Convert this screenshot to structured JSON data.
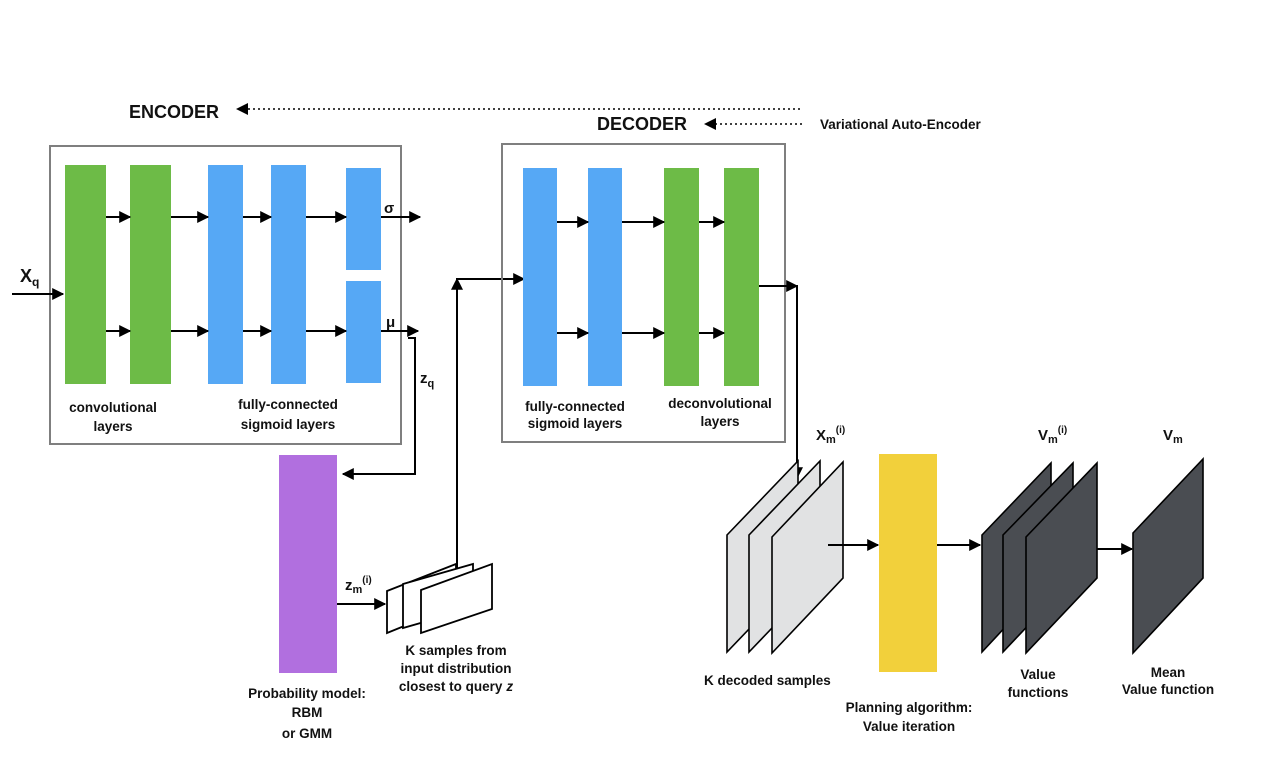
{
  "header": {
    "encoder_label": "ENCODER",
    "decoder_label": "DECODER",
    "vae_label": "Variational Auto-Encoder"
  },
  "encoder": {
    "input_symbol": "X",
    "input_sub": "q",
    "conv_label_line1": "convolutional",
    "conv_label_line2": "layers",
    "fc_label_line1": "fully-connected",
    "fc_label_line2": "sigmoid layers",
    "sigma_label": "σ",
    "mu_label": "μ",
    "zq_symbol": "z",
    "zq_sub": "q"
  },
  "decoder": {
    "fc_label_line1": "fully-connected",
    "fc_label_line2": "sigmoid layers",
    "deconv_label_line1": "deconvolutional",
    "deconv_label_line2": "layers"
  },
  "probability": {
    "label_line1": "Probability model:",
    "label_line2": "RBM",
    "label_line3": "or GMM",
    "zm_symbol": "z",
    "zm_sub": "m",
    "zm_sup": "(i)"
  },
  "samples": {
    "label_line1": "K samples from",
    "label_line2": "input distribution",
    "label_line3": "closest to query",
    "label_z": "z"
  },
  "decoded": {
    "symbol": "X",
    "sub": "m",
    "sup": "(i)",
    "label": "K decoded samples"
  },
  "planning": {
    "label_line1": "Planning algorithm:",
    "label_line2": "Value iteration"
  },
  "value_functions": {
    "symbol": "V",
    "sub": "m",
    "sup": "(i)",
    "label_line1": "Value",
    "label_line2": "functions"
  },
  "mean_value": {
    "symbol": "V",
    "sub": "m",
    "label_line1": "Mean",
    "label_line2": "Value function"
  },
  "colors": {
    "green": "#6dbb47",
    "blue": "#56a8f5",
    "purple": "#b16fdf",
    "yellow": "#f2d03b",
    "dark": "#4a4d52",
    "light_gray": "#e1e2e3",
    "box_border": "#7f7f7f"
  }
}
